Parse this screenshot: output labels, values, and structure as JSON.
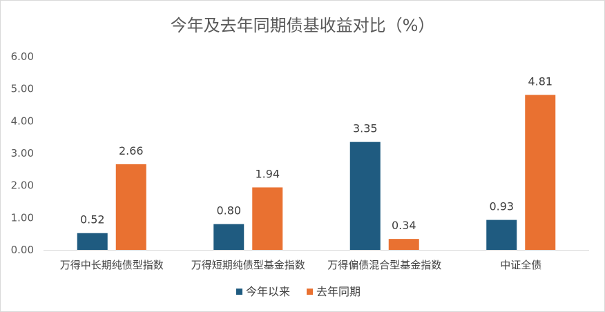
{
  "chart_data": {
    "type": "bar",
    "title": "今年及去年同期债基收益对比（%）",
    "categories": [
      "万得中长期纯债型指数",
      "万得短期纯债型基金指数",
      "万得偏债混合型基金指数",
      "中证全债"
    ],
    "series": [
      {
        "name": "今年以来",
        "color": "#1f5b80",
        "values": [
          0.52,
          0.8,
          3.35,
          0.93
        ]
      },
      {
        "name": "去年同期",
        "color": "#e97131",
        "values": [
          2.66,
          1.94,
          0.34,
          4.81
        ]
      }
    ],
    "ylim": [
      0,
      6
    ],
    "yticks": [
      "0.00",
      "1.00",
      "2.00",
      "3.00",
      "4.00",
      "5.00",
      "6.00"
    ],
    "xlabel": "",
    "ylabel": "",
    "grid": false,
    "legend_position": "bottom"
  }
}
